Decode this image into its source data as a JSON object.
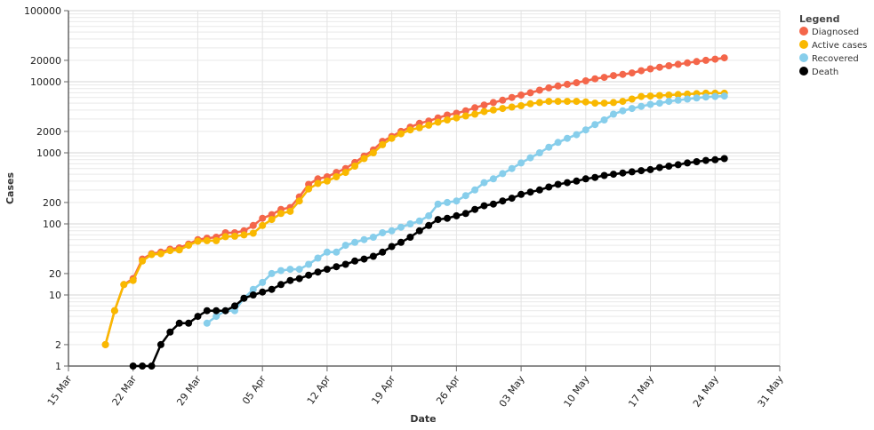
{
  "chart_data": {
    "type": "line",
    "title": "",
    "xlabel": "Date",
    "ylabel": "Cases",
    "y_scale": "log",
    "ylim": [
      1,
      100000
    ],
    "xlim": [
      "2020-03-15",
      "2020-05-31"
    ],
    "grid": true,
    "legend_position": "top-right",
    "legend_title": "Legend",
    "x_tick_labels": [
      "15 Mar",
      "22 Mar",
      "29 Mar",
      "05 Apr",
      "12 Apr",
      "19 Apr",
      "26 Apr",
      "03 May",
      "10 May",
      "17 May",
      "24 May",
      "31 May"
    ],
    "y_tick_labels": [
      "1",
      "2",
      "10",
      "20",
      "100",
      "200",
      "1000",
      "2000",
      "10000",
      "20000",
      "100000"
    ],
    "dates": [
      "2020-03-19",
      "2020-03-20",
      "2020-03-21",
      "2020-03-22",
      "2020-03-23",
      "2020-03-24",
      "2020-03-25",
      "2020-03-26",
      "2020-03-27",
      "2020-03-28",
      "2020-03-29",
      "2020-03-30",
      "2020-03-31",
      "2020-04-01",
      "2020-04-02",
      "2020-04-03",
      "2020-04-04",
      "2020-04-05",
      "2020-04-06",
      "2020-04-07",
      "2020-04-08",
      "2020-04-09",
      "2020-04-10",
      "2020-04-11",
      "2020-04-12",
      "2020-04-13",
      "2020-04-14",
      "2020-04-15",
      "2020-04-16",
      "2020-04-17",
      "2020-04-18",
      "2020-04-19",
      "2020-04-20",
      "2020-04-21",
      "2020-04-22",
      "2020-04-23",
      "2020-04-24",
      "2020-04-25",
      "2020-04-26",
      "2020-04-27",
      "2020-04-28",
      "2020-04-29",
      "2020-04-30",
      "2020-05-01",
      "2020-05-02",
      "2020-05-03",
      "2020-05-04",
      "2020-05-05",
      "2020-05-06",
      "2020-05-07",
      "2020-05-08",
      "2020-05-09",
      "2020-05-10",
      "2020-05-11",
      "2020-05-12",
      "2020-05-13",
      "2020-05-14",
      "2020-05-15",
      "2020-05-16",
      "2020-05-17",
      "2020-05-18",
      "2020-05-19",
      "2020-05-20",
      "2020-05-21",
      "2020-05-22",
      "2020-05-23",
      "2020-05-24",
      "2020-05-25"
    ],
    "series": [
      {
        "name": "Diagnosed",
        "color": "#f4664a",
        "values": [
          2,
          6,
          14,
          17,
          32,
          38,
          40,
          44,
          46,
          52,
          60,
          63,
          65,
          75,
          75,
          80,
          95,
          120,
          135,
          160,
          170,
          240,
          360,
          430,
          460,
          530,
          600,
          730,
          900,
          1100,
          1450,
          1700,
          2000,
          2300,
          2600,
          2800,
          3100,
          3400,
          3600,
          3900,
          4300,
          4700,
          5100,
          5500,
          6000,
          6500,
          7000,
          7600,
          8200,
          8700,
          9200,
          9700,
          10300,
          11000,
          11500,
          12200,
          12700,
          13300,
          14300,
          15200,
          16000,
          16800,
          17600,
          18400,
          19200,
          20000,
          20800,
          21700
        ]
      },
      {
        "name": "Active cases",
        "color": "#f9b800",
        "values": [
          2,
          6,
          14,
          16,
          30,
          37,
          38,
          42,
          43,
          50,
          57,
          58,
          58,
          66,
          67,
          70,
          74,
          95,
          115,
          140,
          150,
          210,
          310,
          370,
          400,
          460,
          530,
          650,
          830,
          1000,
          1300,
          1600,
          1850,
          2100,
          2250,
          2450,
          2700,
          2900,
          3100,
          3300,
          3500,
          3800,
          4000,
          4200,
          4400,
          4600,
          4900,
          5100,
          5300,
          5300,
          5300,
          5300,
          5200,
          5000,
          5000,
          5100,
          5300,
          5700,
          6200,
          6300,
          6400,
          6500,
          6600,
          6700,
          6800,
          6900,
          6900,
          6900
        ]
      },
      {
        "name": "Recovered",
        "color": "#87ceeb",
        "values": [
          null,
          null,
          null,
          null,
          null,
          null,
          null,
          null,
          null,
          null,
          null,
          4,
          5,
          6,
          6,
          9,
          12,
          15,
          20,
          22,
          23,
          23,
          27,
          33,
          40,
          40,
          50,
          55,
          60,
          65,
          75,
          80,
          90,
          100,
          110,
          130,
          190,
          200,
          210,
          250,
          300,
          380,
          430,
          510,
          600,
          720,
          850,
          1000,
          1200,
          1400,
          1600,
          1800,
          2100,
          2500,
          2900,
          3500,
          3900,
          4200,
          4500,
          4800,
          5000,
          5300,
          5500,
          5700,
          5900,
          6100,
          6200,
          6300
        ]
      },
      {
        "name": "Death",
        "color": "#000000",
        "values": [
          null,
          null,
          null,
          1,
          1,
          1,
          2,
          3,
          4,
          4,
          5,
          6,
          6,
          6,
          7,
          9,
          10,
          11,
          12,
          14,
          16,
          17,
          19,
          21,
          23,
          25,
          27,
          30,
          32,
          35,
          40,
          48,
          55,
          65,
          80,
          95,
          115,
          120,
          130,
          140,
          160,
          180,
          190,
          210,
          230,
          260,
          280,
          300,
          330,
          360,
          380,
          400,
          430,
          450,
          480,
          500,
          520,
          540,
          560,
          580,
          620,
          650,
          680,
          720,
          750,
          780,
          800,
          830
        ]
      }
    ]
  }
}
